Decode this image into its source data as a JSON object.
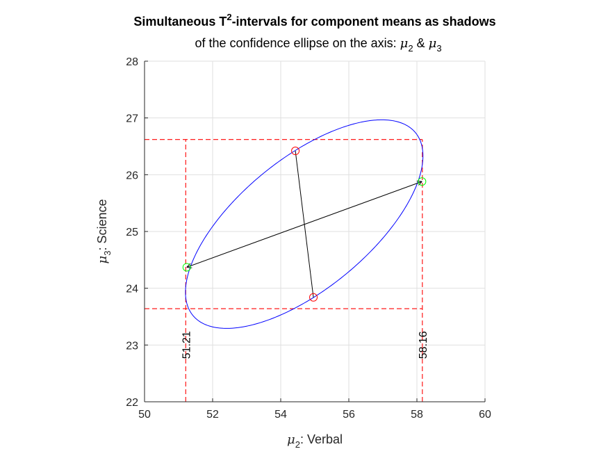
{
  "chart_data": {
    "type": "scatter",
    "title_main": "Simultaneous T",
    "title_sup": "2",
    "title_rest": "-intervals for component means as shadows",
    "subtitle_text": "of the confidence ellipse  on the axis: ",
    "subtitle_mu": "μ",
    "subtitle_sub2": "2",
    "subtitle_amp": " & ",
    "subtitle_sub3": "3",
    "xlabel_mu": "μ",
    "xlabel_sub": "2",
    "xlabel_rest": ": Verbal",
    "ylabel_mu": "μ",
    "ylabel_sub": "3",
    "ylabel_rest": ": Science",
    "xlim": [
      50,
      60
    ],
    "ylim": [
      22,
      28
    ],
    "xticks": [
      "50",
      "52",
      "54",
      "56",
      "58",
      "60"
    ],
    "yticks": [
      "22",
      "23",
      "24",
      "25",
      "26",
      "27",
      "28"
    ],
    "grid": true,
    "ellipse": {
      "center": [
        54.69,
        25.13
      ],
      "semi_major": 3.72,
      "semi_minor": 1.304,
      "angle_deg": 21.8,
      "color": "#0000ff"
    },
    "major_axis_points": [
      [
        51.24,
        24.37
      ],
      [
        58.15,
        25.88
      ]
    ],
    "minor_axis_points": [
      [
        54.43,
        26.42
      ],
      [
        54.96,
        23.84
      ]
    ],
    "major_marker_color": "#00ff00",
    "minor_marker_color": "#ff0000",
    "interval_x": [
      51.21,
      58.16
    ],
    "interval_y": [
      23.64,
      26.62
    ],
    "interval_color": "#ff0000",
    "interval_labels": [
      "51.21",
      "58.16"
    ]
  }
}
